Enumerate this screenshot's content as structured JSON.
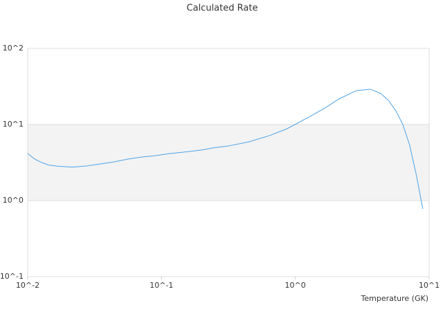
{
  "chart_data": {
    "type": "line",
    "title": "Calculated Rate",
    "x_label": "Temperature (GK)",
    "log_x": true,
    "log_y": true,
    "grid": true,
    "xlim": [
      0.01,
      10
    ],
    "ylim": [
      0.1,
      100
    ],
    "xticks": [
      {
        "value": 0.01,
        "label": "10^-2"
      },
      {
        "value": 0.1,
        "label": "10^-1"
      },
      {
        "value": 1,
        "label": "10^0"
      },
      {
        "value": 10,
        "label": "10^1"
      }
    ],
    "yticks": [
      {
        "value": 0.1,
        "label": "10^-1"
      },
      {
        "value": 1,
        "label": "10^0"
      },
      {
        "value": 10,
        "label": "10^1"
      },
      {
        "value": 100,
        "label": "10^2"
      }
    ],
    "x": [
      0.01,
      0.0113,
      0.0127,
      0.0143,
      0.0171,
      0.0217,
      0.0275,
      0.0349,
      0.0443,
      0.0562,
      0.0714,
      0.0905,
      0.115,
      0.146,
      0.197,
      0.249,
      0.316,
      0.451,
      0.643,
      0.87,
      1.24,
      1.67,
      2.12,
      2.86,
      3.63,
      4.35,
      5.0,
      5.63,
      6.36,
      7.15,
      8.06,
      8.96
    ],
    "series": [
      {
        "color": "#4da3e8",
        "values": [
          4.15,
          3.51,
          3.16,
          2.94,
          2.82,
          2.76,
          2.85,
          3.03,
          3.23,
          3.51,
          3.74,
          3.9,
          4.15,
          4.33,
          4.61,
          4.96,
          5.22,
          5.93,
          7.16,
          8.82,
          12.3,
          16.5,
          21.7,
          27.9,
          29.1,
          25.6,
          20.4,
          15.2,
          10,
          5.33,
          2.08,
          0.78
        ]
      }
    ]
  }
}
